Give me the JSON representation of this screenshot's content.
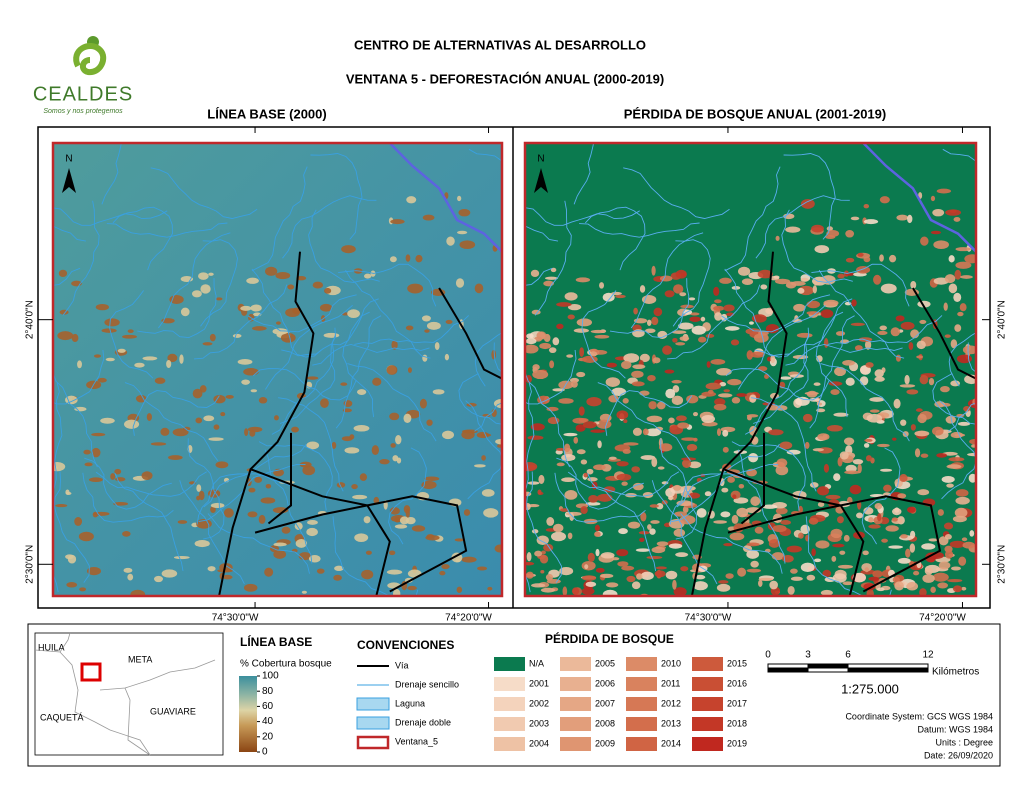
{
  "header": {
    "title": "CENTRO DE ALTERNATIVAS AL DESARROLLO",
    "subtitle": "VENTANA 5 - DEFORESTACIÓN ANUAL (2000-2019)"
  },
  "logo": {
    "name": "CEALDES",
    "tagline": "Somos y nos protegemos"
  },
  "maps": [
    {
      "title": "LÍNEA BASE (2000)",
      "north": "N",
      "x_labels": [
        "74°30'0\"W",
        "74°20'0\"W"
      ],
      "y_labels": [
        "2°40'0\"N",
        "2°30'0\"N"
      ]
    },
    {
      "title": "PÉRDIDA DE BOSQUE ANUAL (2001-2019)",
      "north": "N",
      "x_labels": [
        "74°30'0\"W",
        "74°20'0\"W"
      ],
      "y_labels": [
        "2°40'0\"N",
        "2°30'0\"N"
      ]
    }
  ],
  "legend": {
    "locator": {
      "labels": [
        "HUILA",
        "META",
        "CAQUETÁ",
        "GUAVIARE"
      ]
    },
    "baseline": {
      "title": "LÍNEA BASE",
      "subtitle": "% Cobertura bosque",
      "range": [
        0,
        100
      ],
      "ticks": [
        100,
        80,
        60,
        40,
        20,
        0
      ]
    },
    "conventions": {
      "title": "CONVENCIONES",
      "items": [
        "Vía",
        "Drenaje sencillo",
        "Laguna",
        "Drenaje doble",
        "Ventana_5"
      ]
    },
    "loss": {
      "title": "PÉRDIDA DE BOSQUE",
      "items": [
        {
          "label": "N/A",
          "color": "#0b7a4f"
        },
        {
          "label": "2001",
          "color": "#f6dcc8"
        },
        {
          "label": "2002",
          "color": "#f4d3bc"
        },
        {
          "label": "2003",
          "color": "#f1cab0"
        },
        {
          "label": "2004",
          "color": "#eec2a5"
        },
        {
          "label": "2005",
          "color": "#ebb99a"
        },
        {
          "label": "2006",
          "color": "#e8b090"
        },
        {
          "label": "2007",
          "color": "#e5a785"
        },
        {
          "label": "2008",
          "color": "#e29e7b"
        },
        {
          "label": "2009",
          "color": "#df9571"
        },
        {
          "label": "2010",
          "color": "#dc8b67"
        },
        {
          "label": "2011",
          "color": "#d9825e"
        },
        {
          "label": "2012",
          "color": "#d67855"
        },
        {
          "label": "2013",
          "color": "#d36e4c"
        },
        {
          "label": "2014",
          "color": "#d06444"
        },
        {
          "label": "2015",
          "color": "#cd5a3c"
        },
        {
          "label": "2016",
          "color": "#c94f34"
        },
        {
          "label": "2017",
          "color": "#c6432d"
        },
        {
          "label": "2018",
          "color": "#c33726"
        },
        {
          "label": "2019",
          "color": "#c0281f"
        }
      ]
    },
    "scale": {
      "ticks": [
        0,
        3,
        6,
        12
      ],
      "unit": "Kilómetros",
      "ratio": "1:275.000"
    },
    "metadata": [
      "Coordinate System: GCS WGS 1984",
      "Datum: WGS 1984",
      "Units : Degree",
      "Date: 26/09/2020"
    ]
  }
}
